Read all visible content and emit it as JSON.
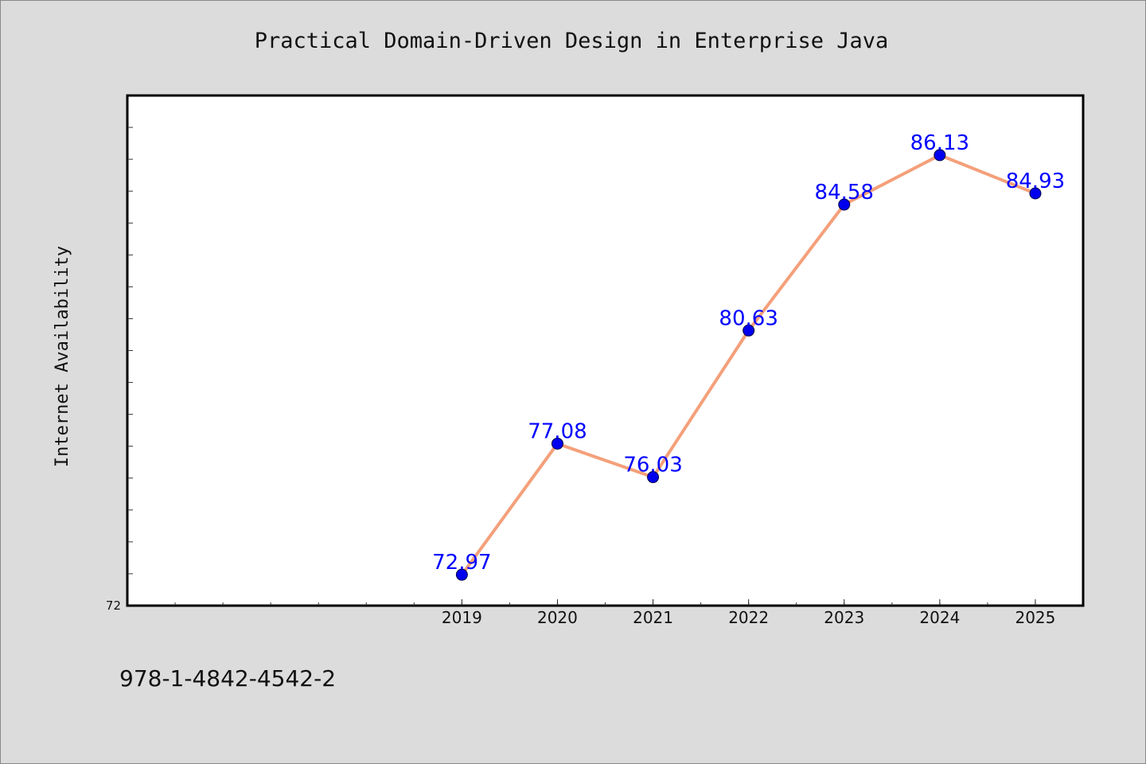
{
  "chart_data": {
    "type": "line",
    "title": "Practical Domain-Driven Design in Enterprise Java",
    "xlabel": "",
    "ylabel": "Internet Availability",
    "x": [
      "2019",
      "2020",
      "2021",
      "2022",
      "2023",
      "2024",
      "2025"
    ],
    "categories": [
      "2019",
      "2020",
      "2021",
      "2022",
      "2023",
      "2024",
      "2025"
    ],
    "values": [
      72.97,
      77.08,
      76.03,
      80.63,
      84.58,
      86.13,
      84.93
    ],
    "data_labels": [
      "72.97",
      "77.08",
      "76.03",
      "80.63",
      "84.58",
      "86.13",
      "84.93"
    ],
    "yticks": [
      72
    ],
    "ylim": [
      72,
      88
    ],
    "xlim": [
      2015.5,
      2025.5
    ],
    "grid": false,
    "legend": "none",
    "line_color": "#f4a07a",
    "marker_color": "#0000ee",
    "label_color": "#0000ff"
  },
  "footer": {
    "isbn": "978-1-4842-4542-2"
  }
}
